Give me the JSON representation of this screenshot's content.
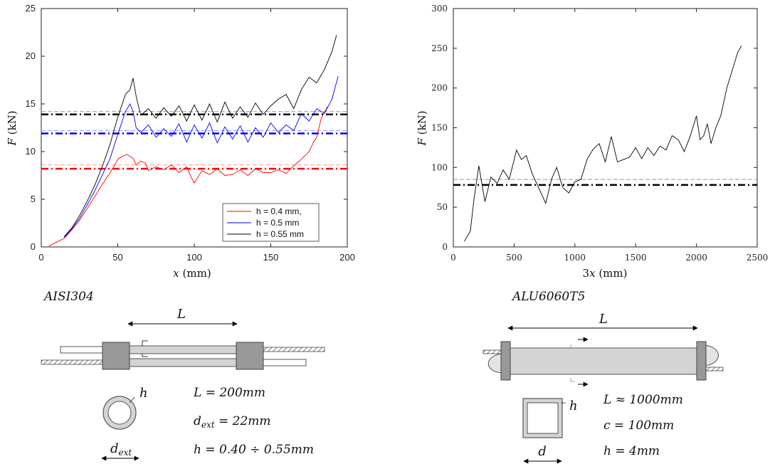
{
  "chart_data": [
    {
      "type": "line",
      "xlabel": "x (mm)",
      "ylabel": "F (kN)",
      "xlim": [
        0,
        200
      ],
      "ylim": [
        0,
        25
      ],
      "xticks": [
        "0",
        "50",
        "100",
        "150",
        "200"
      ],
      "yticks": [
        "0",
        "5",
        "10",
        "15",
        "20",
        "25"
      ],
      "legend_position": "bottom-right",
      "series": [
        {
          "name": "h = 0.4 mm,",
          "color": "#ff0000",
          "x": [
            5,
            10,
            15,
            20,
            25,
            30,
            35,
            40,
            45,
            48,
            50,
            53,
            56,
            60,
            62,
            65,
            68,
            70,
            75,
            80,
            85,
            90,
            95,
            98,
            100,
            105,
            110,
            115,
            120,
            125,
            130,
            135,
            140,
            145,
            150,
            155,
            160,
            165,
            170,
            175,
            178,
            180,
            183,
            187
          ],
          "y": [
            0.1,
            0.5,
            0.9,
            1.8,
            2.8,
            4.0,
            5.3,
            6.6,
            7.8,
            8.6,
            9.2,
            9.5,
            9.7,
            9.3,
            8.6,
            9.0,
            8.8,
            8.0,
            8.4,
            8.1,
            8.6,
            7.8,
            8.4,
            7.3,
            6.7,
            8.0,
            7.6,
            8.2,
            7.5,
            7.6,
            8.1,
            7.5,
            8.2,
            7.8,
            7.8,
            8.1,
            7.7,
            8.5,
            9.2,
            10.0,
            11.0,
            11.5,
            13.5,
            14.7
          ]
        },
        {
          "name": "h = 0.5 mm",
          "color": "#0000ff",
          "x": [
            15,
            20,
            25,
            30,
            35,
            40,
            45,
            50,
            55,
            58,
            60,
            62,
            65,
            70,
            75,
            80,
            85,
            90,
            95,
            100,
            105,
            110,
            115,
            120,
            125,
            130,
            135,
            140,
            145,
            150,
            155,
            160,
            165,
            170,
            175,
            180,
            185,
            190,
            194
          ],
          "y": [
            1.0,
            1.9,
            3.0,
            4.4,
            5.9,
            7.6,
            9.3,
            11.8,
            14.2,
            15.0,
            14.2,
            12.5,
            12.0,
            12.8,
            11.5,
            12.4,
            11.6,
            12.9,
            11.0,
            12.8,
            11.4,
            13.0,
            10.9,
            12.6,
            11.3,
            12.7,
            11.0,
            12.5,
            11.5,
            13.0,
            12.0,
            12.8,
            12.2,
            14.0,
            13.2,
            14.5,
            14.0,
            15.5,
            17.9
          ]
        },
        {
          "name": "h = 0.55 mm",
          "color": "#000000",
          "x": [
            15,
            20,
            25,
            30,
            35,
            40,
            45,
            50,
            55,
            58,
            60,
            62,
            65,
            70,
            75,
            80,
            85,
            90,
            95,
            100,
            105,
            110,
            115,
            120,
            125,
            130,
            135,
            140,
            145,
            150,
            155,
            160,
            165,
            170,
            175,
            180,
            185,
            190,
            193
          ],
          "y": [
            1.1,
            2.0,
            3.3,
            4.8,
            6.5,
            8.5,
            10.8,
            13.6,
            16.0,
            16.5,
            17.7,
            15.8,
            13.8,
            14.5,
            13.5,
            14.6,
            13.7,
            14.8,
            13.2,
            14.9,
            13.3,
            15.0,
            13.1,
            15.2,
            13.5,
            14.7,
            13.6,
            15.1,
            13.9,
            14.8,
            15.5,
            16.0,
            14.5,
            16.5,
            17.8,
            17.2,
            18.6,
            20.5,
            22.2
          ]
        }
      ],
      "reference_lines": [
        {
          "y": 8.2,
          "color": "#ff0000",
          "style": "dash-dot"
        },
        {
          "y": 8.6,
          "color": "#ff9999",
          "style": "dashed"
        },
        {
          "y": 11.9,
          "color": "#0000ff",
          "style": "dash-dot"
        },
        {
          "y": 12.2,
          "color": "#9999ff",
          "style": "dashed"
        },
        {
          "y": 13.9,
          "color": "#000000",
          "style": "dash-dot"
        },
        {
          "y": 14.2,
          "color": "#999999",
          "style": "dashed"
        }
      ]
    },
    {
      "type": "line",
      "xlabel": "3x (mm)",
      "ylabel": "F (kN)",
      "xlim": [
        0,
        2500
      ],
      "ylim": [
        0,
        300
      ],
      "xticks": [
        "0",
        "500",
        "1000",
        "1500",
        "2000",
        "2500"
      ],
      "yticks": [
        "0",
        "50",
        "100",
        "150",
        "200",
        "250",
        "300"
      ],
      "series": [
        {
          "color": "#000000",
          "x": [
            90,
            140,
            170,
            210,
            260,
            310,
            360,
            410,
            460,
            520,
            560,
            600,
            650,
            700,
            760,
            810,
            850,
            900,
            950,
            1000,
            1050,
            1100,
            1150,
            1200,
            1250,
            1300,
            1350,
            1400,
            1450,
            1500,
            1550,
            1600,
            1650,
            1700,
            1750,
            1800,
            1850,
            1900,
            1950,
            2000,
            2030,
            2060,
            2090,
            2120,
            2160,
            2200,
            2250,
            2300,
            2340,
            2370
          ],
          "y": [
            7,
            20,
            60,
            102,
            57,
            88,
            80,
            97,
            85,
            122,
            110,
            115,
            92,
            75,
            55,
            86,
            100,
            75,
            68,
            82,
            85,
            110,
            123,
            130,
            107,
            139,
            107,
            110,
            113,
            125,
            111,
            125,
            115,
            127,
            122,
            140,
            135,
            120,
            140,
            165,
            135,
            140,
            155,
            130,
            150,
            165,
            200,
            225,
            245,
            253
          ]
        }
      ],
      "reference_lines": [
        {
          "y": 78,
          "color": "#000000",
          "style": "dash-dot"
        },
        {
          "y": 85,
          "color": "#999999",
          "style": "dashed"
        }
      ]
    }
  ],
  "diagrams": {
    "left": {
      "material": "AISI304",
      "length_symbol": "L",
      "thickness_symbol": "h",
      "diameter_symbol": "d_ext",
      "eq1": "L = 200mm",
      "eq2": "d_ext = 22mm",
      "eq3": "h = 0.40 ÷ 0.55mm"
    },
    "right": {
      "material": "ALU6060T5",
      "length_symbol": "L",
      "thickness_symbol": "h",
      "width_symbol": "d",
      "eq1": "L ≈ 1000mm",
      "eq2": "c = 100mm",
      "eq3": "h = 4mm"
    }
  }
}
